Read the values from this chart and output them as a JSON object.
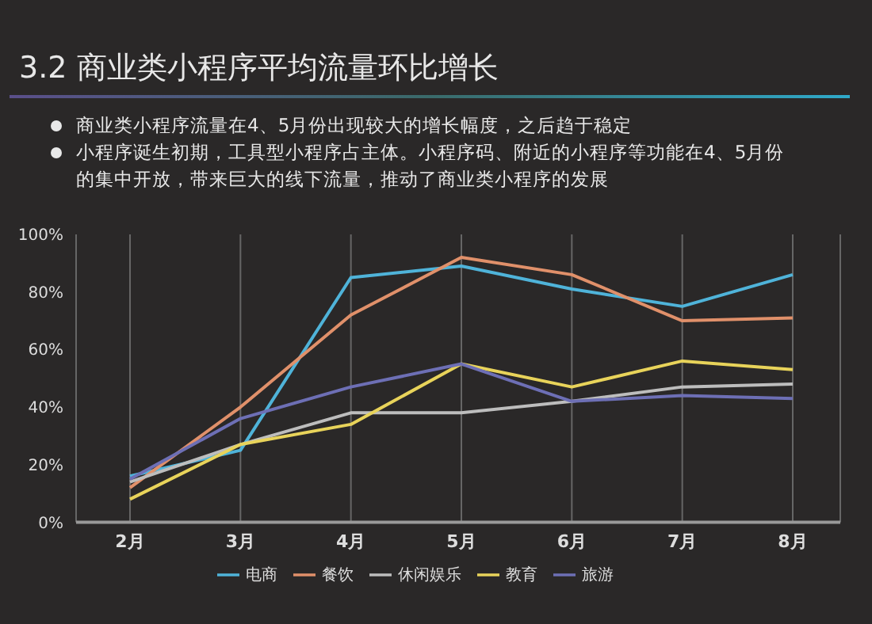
{
  "chart_data": {
    "type": "line",
    "title": "3.2 商业类小程序平均流量环比增长",
    "annotations": [
      "商业类小程序流量在4、5月份出现较大的增长幅度，之后趋于稳定",
      "小程序诞生初期，工具型小程序占主体。小程序码、附近的小程序等功能在4、5月份的集中开放，带来巨大的线下流量，推动了商业类小程序的发展"
    ],
    "categories": [
      "2月",
      "3月",
      "4月",
      "5月",
      "6月",
      "7月",
      "8月"
    ],
    "series": [
      {
        "name": "电商",
        "color": "#4fb3d9",
        "values": [
          16,
          25,
          85,
          89,
          81,
          75,
          86
        ]
      },
      {
        "name": "餐饮",
        "color": "#e0906a",
        "values": [
          12,
          40,
          72,
          92,
          86,
          70,
          71
        ]
      },
      {
        "name": "休闲娱乐",
        "color": "#bdbdbd",
        "values": [
          14,
          27,
          38,
          38,
          42,
          47,
          48
        ]
      },
      {
        "name": "教育",
        "color": "#e8d35a",
        "values": [
          8,
          27,
          34,
          55,
          47,
          56,
          53
        ]
      },
      {
        "name": "旅游",
        "color": "#6d6fb5",
        "values": [
          15,
          36,
          47,
          55,
          42,
          44,
          43
        ]
      }
    ],
    "ylim": [
      0,
      100
    ],
    "yticks": [
      {
        "value": 0,
        "label": "0%"
      },
      {
        "value": 20,
        "label": "20%"
      },
      {
        "value": 40,
        "label": "40%"
      },
      {
        "value": 60,
        "label": "60%"
      },
      {
        "value": 80,
        "label": "80%"
      },
      {
        "value": 100,
        "label": "100%"
      }
    ],
    "grid": "x",
    "legend": "bottom",
    "marker": "none",
    "line_style": "solid"
  }
}
